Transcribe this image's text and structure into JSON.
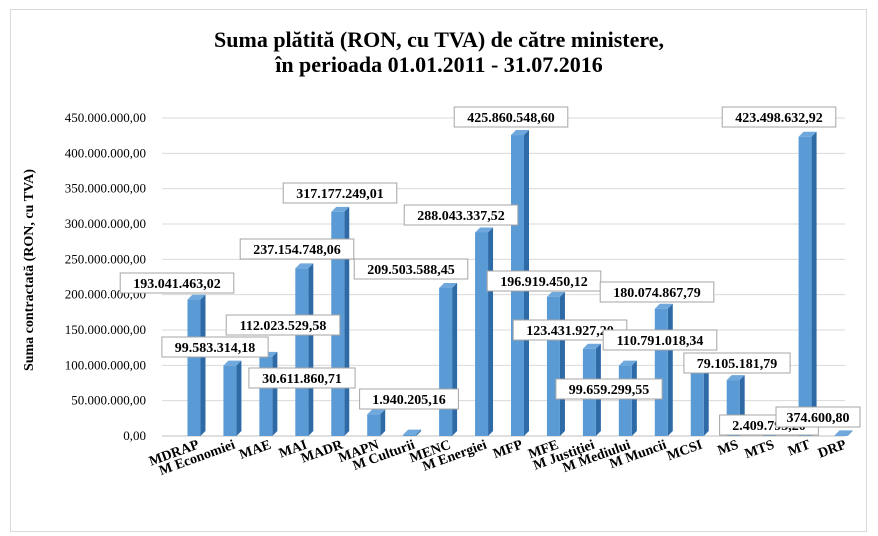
{
  "chart_data": {
    "type": "bar",
    "title": [
      "Suma plătită (RON, cu TVA) de către ministere,",
      "în perioada 01.01.2011 - 31.07.2016"
    ],
    "xlabel": "",
    "ylabel": "Suma contractată (RON, cu TVA)",
    "ylim": [
      0,
      450000000
    ],
    "yticks": [
      "0,00",
      "50.000.000,00",
      "100.000.000,00",
      "150.000.000,00",
      "200.000.000,00",
      "250.000.000,00",
      "300.000.000,00",
      "350.000.000,00",
      "400.000.000,00",
      "450.000.000,00"
    ],
    "grid": true,
    "legend": "none",
    "bar_color": "#5b9bd5",
    "categories": [
      "MDRAP",
      "M Economiei",
      "MAE",
      "MAI",
      "MADR",
      "MAPN",
      "M Culturii",
      "MENC",
      "M Energiei",
      "MFP",
      "MFE",
      "M Justiției",
      "M Mediului",
      "M Muncii",
      "MCSI",
      "MS",
      "MTS",
      "MT",
      "DRP"
    ],
    "values": [
      193041463.02,
      99583314.18,
      112023529.58,
      237154748.06,
      317177249.01,
      30611860.71,
      1940205.16,
      209503588.45,
      288043337.52,
      425860548.6,
      196919450.12,
      123431927.2,
      99659299.55,
      180074867.79,
      110791018.34,
      79105181.79,
      2409793.2,
      423498632.92,
      374600.8
    ],
    "data_labels": [
      "193.041.463,02",
      "99.583.314,18",
      "112.023.529,58",
      "237.154.748,06",
      "317.177.249,01",
      "30.611.860,71",
      "1.940.205,16",
      "209.503.588,45",
      "288.043.337,52",
      "425.860.548,60",
      "196.919.450,12",
      "123.431.927,20",
      "99.659.299,55",
      "180.074.867,79",
      "110.791.018,34",
      "79.105.181,79",
      "2.409.793,20",
      "423.498.632,92",
      "374.600,80"
    ]
  }
}
